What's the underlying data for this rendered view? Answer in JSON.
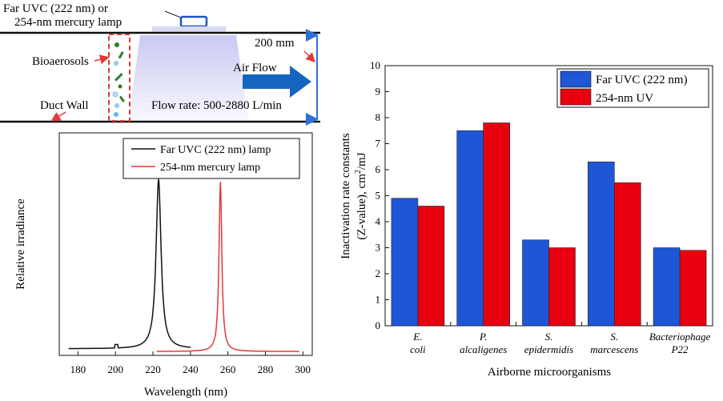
{
  "diagram": {
    "lamp_label_1": "Far UVC (222 nm) or",
    "lamp_label_2": "254-nm mercury lamp",
    "bioaerosols": "Bioaerosols",
    "duct_wall": "Duct Wall",
    "height": "200 mm",
    "air_flow": "Air Flow",
    "flow_rate": "Flow rate: 500-2880 L/min",
    "colors": {
      "duct": "#5b5fc7",
      "arrow": "#1565c0",
      "dashed": "#e53935"
    }
  },
  "chart_data": [
    {
      "type": "line",
      "xlabel": "Wavelength (nm)",
      "ylabel": "Relative irradiance",
      "xlim": [
        170,
        305
      ],
      "xticks": [
        "180",
        "200",
        "220",
        "240",
        "260",
        "280",
        "300"
      ],
      "series": [
        {
          "name": "Far UVC (222 nm) lamp",
          "color": "#111111",
          "peak": 223,
          "width": 1.6,
          "from": 175,
          "to": 240,
          "wing": 0.02
        },
        {
          "name": "254-nm mercury lamp",
          "color": "#e53935",
          "peak": 256,
          "width": 0.9,
          "from": 222,
          "to": 298,
          "wing": 0.004
        }
      ]
    },
    {
      "type": "bar",
      "title": "",
      "xlabel": "Airborne microorganisms",
      "ylabel_1": "Inactivation rate constants",
      "ylabel_2": "(Z-value), cm",
      "ylabel_sup": "2",
      "ylabel_3": "/mJ",
      "ylim": [
        0,
        10
      ],
      "yticks": [
        "0",
        "1",
        "2",
        "3",
        "4",
        "5",
        "6",
        "7",
        "8",
        "9",
        "10"
      ],
      "categories": [
        {
          "line1": "E.",
          "line2": "coli"
        },
        {
          "line1": "P.",
          "line2": "alcaligenes"
        },
        {
          "line1": "S.",
          "line2": "epidermidis"
        },
        {
          "line1": "S.",
          "line2": "marcescens"
        },
        {
          "line1": "Bacteriophage",
          "line2": "P22"
        }
      ],
      "series": [
        {
          "name": "Far UVC (222 nm)",
          "color": "#1f56d6",
          "values": [
            4.9,
            7.5,
            3.3,
            6.3,
            3.0
          ]
        },
        {
          "name": "254-nm UV",
          "color": "#e8000f",
          "values": [
            4.6,
            7.8,
            3.0,
            5.5,
            2.9
          ]
        }
      ]
    }
  ]
}
